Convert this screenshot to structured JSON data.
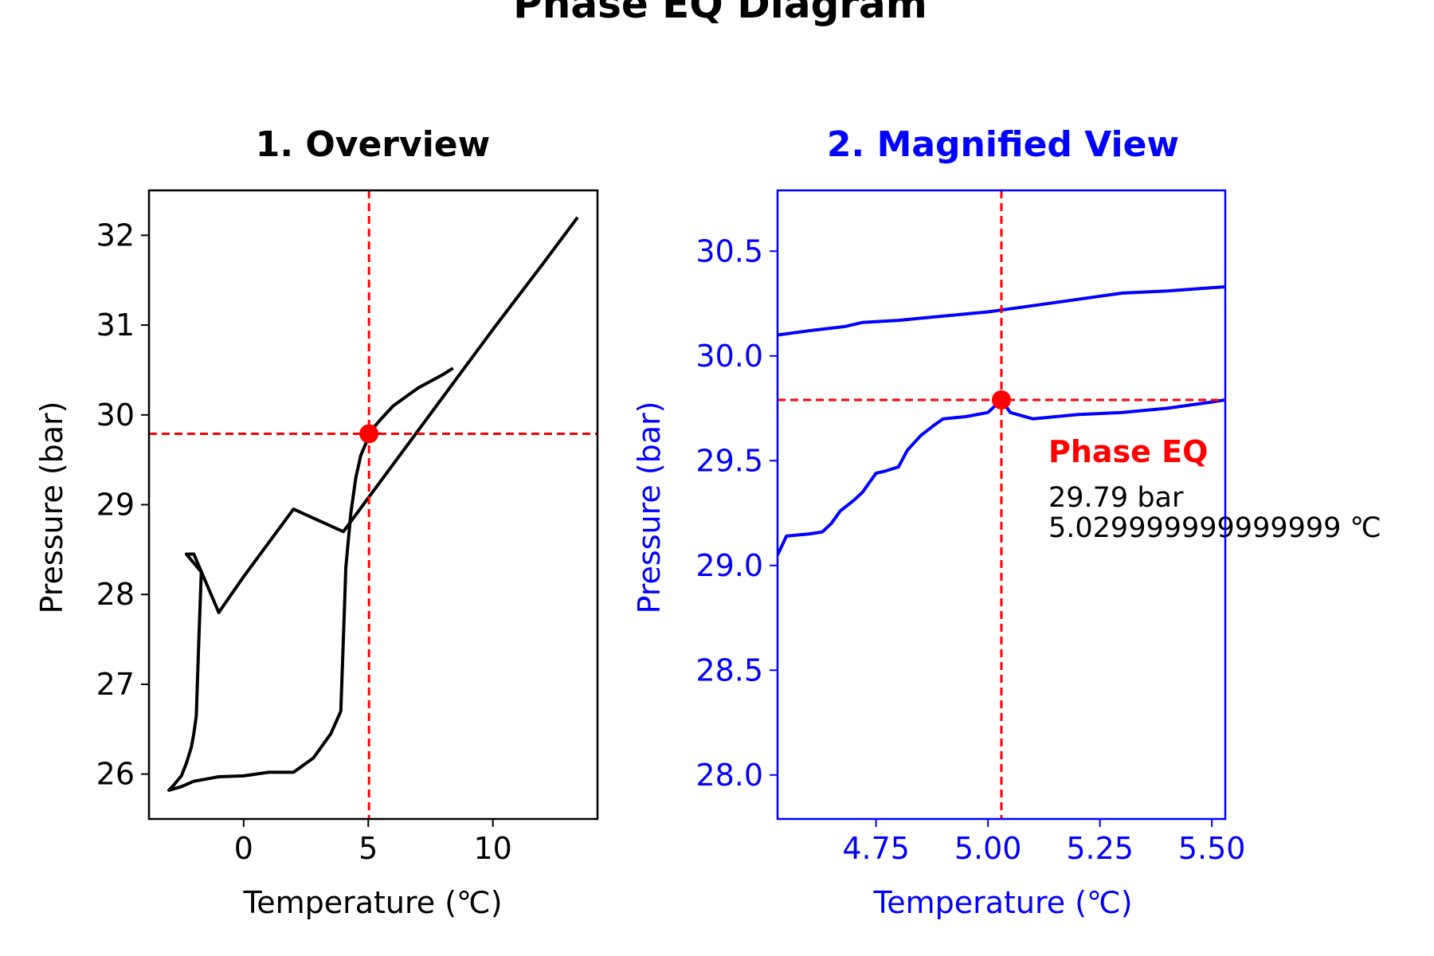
{
  "figure": {
    "title": "Phase EQ Diagram"
  },
  "chart_data": [
    {
      "type": "line",
      "title": "1. Overview",
      "xlabel": "Temperature (℃)",
      "ylabel": "Pressure (bar)",
      "xlim": [
        -3.8,
        14.2
      ],
      "ylim": [
        25.5,
        32.5
      ],
      "xticks": [
        0,
        5,
        10
      ],
      "yticks": [
        26,
        27,
        28,
        29,
        30,
        31,
        32
      ],
      "grid": false,
      "color": "#000000",
      "series": [
        {
          "x": [
            13.4,
            12,
            10,
            8,
            6,
            4,
            2,
            0,
            -1,
            -2,
            -2.3,
            -1.7,
            -1.8,
            -1.9,
            -2.0,
            -2.1,
            -2.3,
            -2.5,
            -2.8,
            -3.0,
            -2.5,
            -2,
            -1,
            0,
            1,
            2,
            2.8,
            3.5,
            3.9,
            4.0,
            4.1,
            4.3,
            4.5,
            4.7,
            4.9,
            5.0,
            5.5,
            6,
            7,
            8,
            8.4
          ],
          "y": [
            32.2,
            31.68,
            30.95,
            30.2,
            29.45,
            28.7,
            28.95,
            28.2,
            27.8,
            28.45,
            28.45,
            28.25,
            27.5,
            26.65,
            26.45,
            26.3,
            26.12,
            25.98,
            25.88,
            25.82,
            25.86,
            25.92,
            25.97,
            25.98,
            26.02,
            26.02,
            26.18,
            26.45,
            26.7,
            27.5,
            28.3,
            28.9,
            29.3,
            29.55,
            29.68,
            29.79,
            29.95,
            30.1,
            30.3,
            30.45,
            30.52
          ]
        }
      ],
      "marker": {
        "x": 5.03,
        "y": 29.79,
        "color": "#ff0000"
      },
      "crosshair": {
        "x": 5.03,
        "y": 29.79,
        "color": "#ff0000",
        "style": "dashed"
      }
    },
    {
      "type": "line",
      "title": "2. Magnified View",
      "xlabel": "Temperature (℃)",
      "ylabel": "Pressure (bar)",
      "xlim": [
        4.53,
        5.53
      ],
      "ylim": [
        27.79,
        30.79
      ],
      "xticks": [
        "4.75",
        "5.00",
        "5.25",
        "5.50"
      ],
      "yticks": [
        "28.0",
        "28.5",
        "29.0",
        "29.5",
        "30.0",
        "30.5"
      ],
      "grid": false,
      "color": "#0000ff",
      "series": [
        {
          "x": [
            4.53,
            4.6,
            4.68,
            4.72,
            4.8,
            4.9,
            5.0,
            5.1,
            5.2,
            5.3,
            5.4,
            5.53
          ],
          "y": [
            30.1,
            30.12,
            30.14,
            30.16,
            30.17,
            30.19,
            30.21,
            30.24,
            30.27,
            30.3,
            30.31,
            30.33
          ]
        },
        {
          "x": [
            4.53,
            4.55,
            4.6,
            4.63,
            4.65,
            4.67,
            4.7,
            4.72,
            4.75,
            4.77,
            4.8,
            4.82,
            4.85,
            4.88,
            4.9,
            4.95,
            5.0,
            5.03,
            5.05,
            5.1,
            5.2,
            5.3,
            5.4,
            5.5,
            5.53
          ],
          "y": [
            29.05,
            29.14,
            29.15,
            29.16,
            29.2,
            29.26,
            29.31,
            29.35,
            29.44,
            29.45,
            29.47,
            29.55,
            29.62,
            29.67,
            29.7,
            29.71,
            29.73,
            29.79,
            29.73,
            29.7,
            29.72,
            29.73,
            29.75,
            29.78,
            29.79
          ]
        }
      ],
      "marker": {
        "x": 5.03,
        "y": 29.79,
        "color": "#ff0000"
      },
      "crosshair": {
        "x": 5.03,
        "y": 29.79,
        "color": "#ff0000",
        "style": "dashed"
      },
      "annotation": {
        "title": "Phase EQ",
        "pressure_text": "29.79 bar",
        "temperature_text": "5.029999999999999 ℃"
      }
    }
  ]
}
